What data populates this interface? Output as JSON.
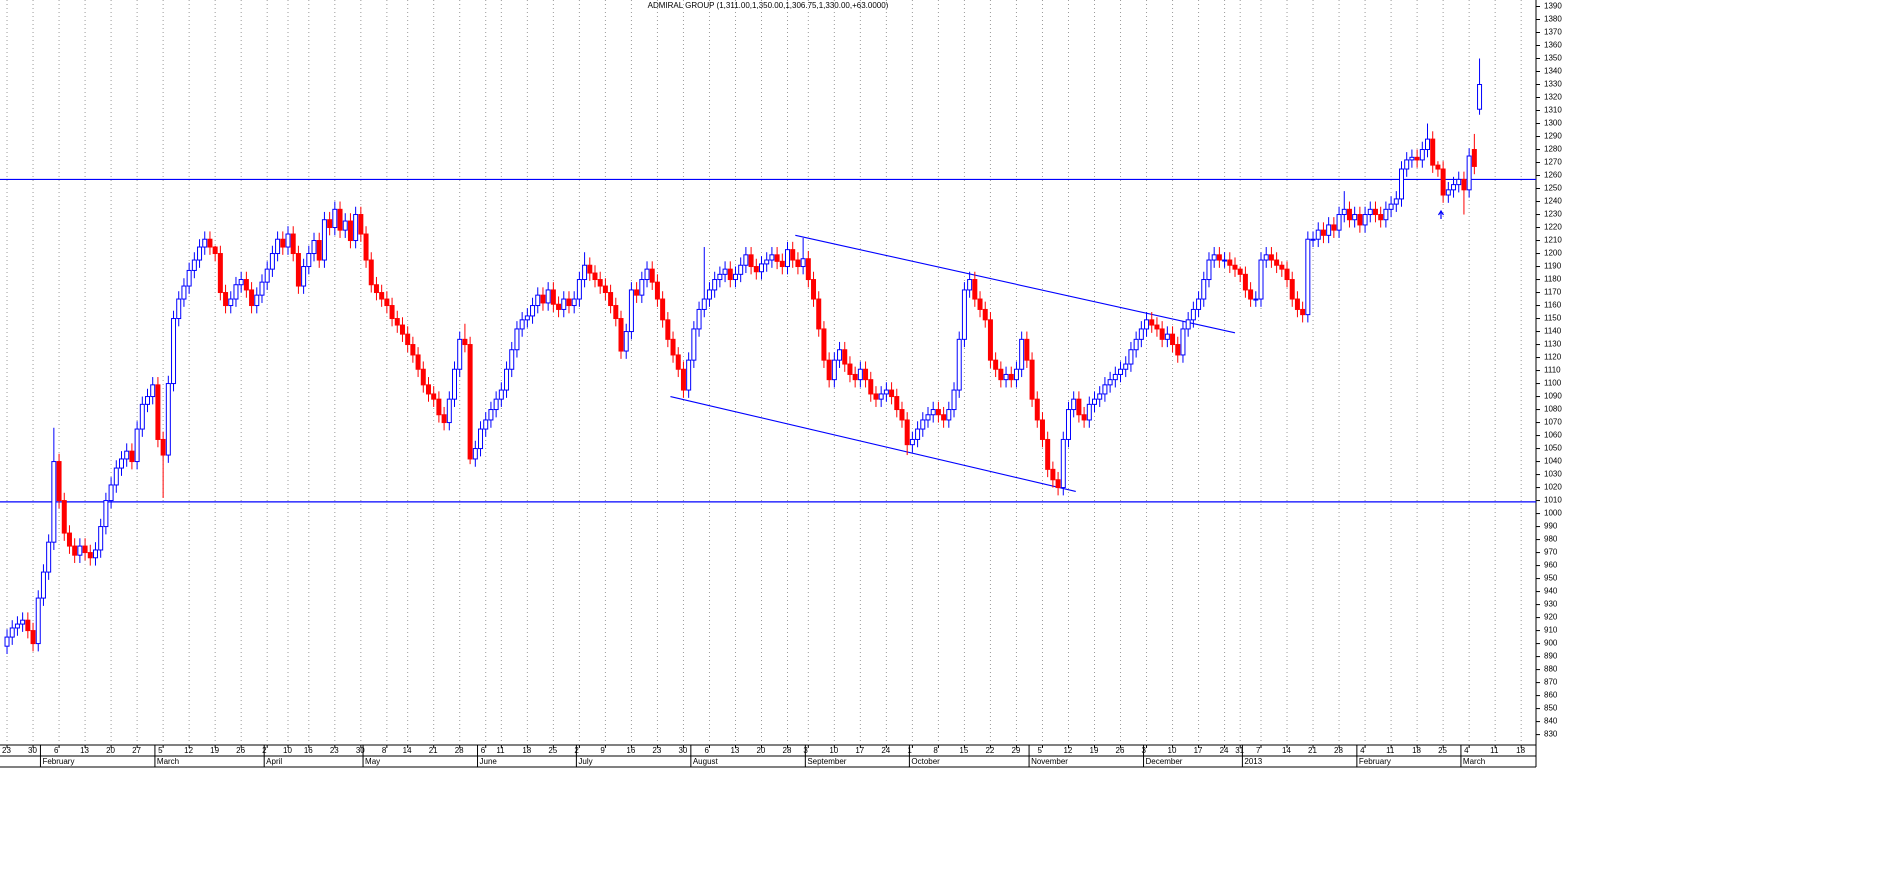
{
  "chart_data": {
    "type": "candlestick",
    "title": "ADMIRAL GROUP (1,311.00,1,350.00,1,306.75,1,330.00,+63.0000)",
    "up_color": "#0000ff",
    "down_color": "#ff0000",
    "line_color": "#0000ff",
    "grid": true,
    "xlim": [
      -1.35,
      293.85
    ],
    "ylim": [
      822,
      1395
    ],
    "yticks": [
      830,
      840,
      850,
      860,
      870,
      880,
      890,
      900,
      910,
      920,
      930,
      940,
      950,
      960,
      970,
      980,
      990,
      1000,
      1010,
      1020,
      1030,
      1040,
      1050,
      1060,
      1070,
      1080,
      1090,
      1100,
      1110,
      1120,
      1130,
      1140,
      1150,
      1160,
      1170,
      1180,
      1190,
      1200,
      1210,
      1220,
      1230,
      1240,
      1250,
      1260,
      1270,
      1280,
      1290,
      1300,
      1310,
      1320,
      1330,
      1340,
      1350,
      1360,
      1370,
      1380,
      1390
    ],
    "xticks": [
      {
        "value": 0,
        "label": "23"
      },
      {
        "value": 5,
        "label": "30"
      },
      {
        "value": 10,
        "label": "6"
      },
      {
        "value": 15,
        "label": "13"
      },
      {
        "value": 20,
        "label": "20"
      },
      {
        "value": 25,
        "label": "27"
      },
      {
        "value": 30,
        "label": "5"
      },
      {
        "value": 35,
        "label": "12"
      },
      {
        "value": 40,
        "label": "19"
      },
      {
        "value": 45,
        "label": "26"
      },
      {
        "value": 50,
        "label": "2"
      },
      {
        "value": 54,
        "label": "10"
      },
      {
        "value": 58,
        "label": "16"
      },
      {
        "value": 63,
        "label": "23"
      },
      {
        "value": 68,
        "label": "30"
      },
      {
        "value": 73,
        "label": "8"
      },
      {
        "value": 77,
        "label": "14"
      },
      {
        "value": 82,
        "label": "21"
      },
      {
        "value": 87,
        "label": "28"
      },
      {
        "value": 92,
        "label": "6"
      },
      {
        "value": 95,
        "label": "11"
      },
      {
        "value": 100,
        "label": "18"
      },
      {
        "value": 105,
        "label": "25"
      },
      {
        "value": 110,
        "label": "2"
      },
      {
        "value": 115,
        "label": "9"
      },
      {
        "value": 120,
        "label": "16"
      },
      {
        "value": 125,
        "label": "23"
      },
      {
        "value": 130,
        "label": "30"
      },
      {
        "value": 135,
        "label": "6"
      },
      {
        "value": 140,
        "label": "13"
      },
      {
        "value": 145,
        "label": "20"
      },
      {
        "value": 150,
        "label": "28"
      },
      {
        "value": 154,
        "label": "3"
      },
      {
        "value": 159,
        "label": "10"
      },
      {
        "value": 164,
        "label": "17"
      },
      {
        "value": 169,
        "label": "24"
      },
      {
        "value": 174,
        "label": "1"
      },
      {
        "value": 179,
        "label": "8"
      },
      {
        "value": 184,
        "label": "15"
      },
      {
        "value": 189,
        "label": "22"
      },
      {
        "value": 194,
        "label": "29"
      },
      {
        "value": 199,
        "label": "5"
      },
      {
        "value": 204,
        "label": "12"
      },
      {
        "value": 209,
        "label": "19"
      },
      {
        "value": 214,
        "label": "26"
      },
      {
        "value": 219,
        "label": "3"
      },
      {
        "value": 224,
        "label": "10"
      },
      {
        "value": 229,
        "label": "17"
      },
      {
        "value": 234,
        "label": "24"
      },
      {
        "value": 237,
        "label": "31"
      },
      {
        "value": 241,
        "label": "7"
      },
      {
        "value": 246,
        "label": "14"
      },
      {
        "value": 251,
        "label": "21"
      },
      {
        "value": 256,
        "label": "28"
      },
      {
        "value": 261,
        "label": "4"
      },
      {
        "value": 266,
        "label": "11"
      },
      {
        "value": 271,
        "label": "18"
      },
      {
        "value": 276,
        "label": "25"
      },
      {
        "value": 281,
        "label": "4"
      },
      {
        "value": 286,
        "label": "11"
      },
      {
        "value": 291,
        "label": "18"
      }
    ],
    "months": [
      {
        "value": 7,
        "label": "February"
      },
      {
        "value": 29,
        "label": "March"
      },
      {
        "value": 50,
        "label": "April"
      },
      {
        "value": 69,
        "label": "May"
      },
      {
        "value": 91,
        "label": "June"
      },
      {
        "value": 110,
        "label": "July"
      },
      {
        "value": 132,
        "label": "August"
      },
      {
        "value": 154,
        "label": "September"
      },
      {
        "value": 174,
        "label": "October"
      },
      {
        "value": 197,
        "label": "November"
      },
      {
        "value": 219,
        "label": "December"
      },
      {
        "value": 238,
        "label": "2013"
      },
      {
        "value": 260,
        "label": "February"
      },
      {
        "value": 280,
        "label": "March"
      }
    ],
    "hlines": [
      1257,
      1009
    ],
    "trendlines": [
      {
        "x": [
          151.5,
          236
        ],
        "y": [
          1214,
          1139
        ]
      },
      {
        "x": [
          127.5,
          205.4
        ],
        "y": [
          1090,
          1017
        ]
      }
    ],
    "open": [
      898,
      905,
      912,
      915,
      918,
      910,
      900,
      935,
      955,
      978,
      1040,
      1010,
      985,
      975,
      968,
      975,
      970,
      966,
      972,
      990,
      1010,
      1022,
      1035,
      1042,
      1048,
      1040,
      1065,
      1084,
      1090,
      1099,
      1057,
      1045,
      1100,
      1150,
      1165,
      1175,
      1187,
      1195,
      1205,
      1211,
      1205,
      1200,
      1170,
      1160,
      1165,
      1176,
      1180,
      1172,
      1160,
      1168,
      1178,
      1188,
      1200,
      1211,
      1205,
      1215,
      1200,
      1175,
      1190,
      1200,
      1210,
      1195,
      1226,
      1220,
      1234,
      1218,
      1225,
      1210,
      1230,
      1215,
      1195,
      1176,
      1170,
      1165,
      1160,
      1150,
      1145,
      1138,
      1130,
      1122,
      1111,
      1099,
      1092,
      1088,
      1076,
      1070,
      1088,
      1111,
      1134,
      1130,
      1042,
      1050,
      1065,
      1072,
      1080,
      1088,
      1095,
      1111,
      1126,
      1142,
      1149,
      1152,
      1160,
      1168,
      1162,
      1172,
      1161,
      1157,
      1165,
      1160,
      1165,
      1180,
      1191,
      1185,
      1180,
      1175,
      1170,
      1160,
      1150,
      1125,
      1140,
      1172,
      1168,
      1180,
      1188,
      1178,
      1165,
      1149,
      1134,
      1122,
      1111,
      1095,
      1118,
      1142,
      1157,
      1165,
      1172,
      1180,
      1184,
      1188,
      1180,
      1184,
      1191,
      1199,
      1190,
      1186,
      1192,
      1195,
      1199,
      1194,
      1190,
      1203,
      1195,
      1190,
      1196,
      1180,
      1165,
      1142,
      1118,
      1103,
      1118,
      1126,
      1115,
      1107,
      1103,
      1111,
      1103,
      1092,
      1088,
      1092,
      1095,
      1090,
      1080,
      1072,
      1053,
      1057,
      1065,
      1072,
      1076,
      1080,
      1076,
      1072,
      1080,
      1095,
      1134,
      1172,
      1180,
      1165,
      1157,
      1149,
      1118,
      1111,
      1103,
      1107,
      1103,
      1111,
      1134,
      1118,
      1088,
      1072,
      1057,
      1034,
      1026,
      1020,
      1057,
      1080,
      1088,
      1076,
      1072,
      1084,
      1088,
      1092,
      1099,
      1103,
      1107,
      1111,
      1115,
      1126,
      1134,
      1142,
      1149,
      1145,
      1142,
      1134,
      1138,
      1130,
      1122,
      1142,
      1149,
      1157,
      1165,
      1180,
      1195,
      1199,
      1195,
      1195,
      1191,
      1188,
      1184,
      1172,
      1165,
      1165,
      1195,
      1199,
      1195,
      1191,
      1188,
      1180,
      1165,
      1157,
      1153,
      1211,
      1211,
      1218,
      1214,
      1222,
      1218,
      1230,
      1234,
      1226,
      1230,
      1222,
      1230,
      1234,
      1230,
      1226,
      1234,
      1238,
      1242,
      1265,
      1272,
      1274,
      1272,
      1280,
      1288,
      1268,
      1265,
      1245,
      1249,
      1253,
      1257,
      1249,
      1280,
      1311
    ],
    "high": [
      911,
      918,
      921,
      924,
      924,
      916,
      941,
      961,
      984,
      1066,
      1046,
      1016,
      991,
      981,
      981,
      981,
      976,
      978,
      996,
      1016,
      1028,
      1041,
      1048,
      1054,
      1054,
      1071,
      1090,
      1096,
      1105,
      1105,
      1063,
      1106,
      1156,
      1171,
      1181,
      1193,
      1201,
      1211,
      1217,
      1217,
      1206,
      1206,
      1176,
      1171,
      1182,
      1186,
      1186,
      1178,
      1174,
      1184,
      1194,
      1206,
      1217,
      1217,
      1221,
      1221,
      1206,
      1196,
      1206,
      1216,
      1216,
      1232,
      1232,
      1240,
      1240,
      1231,
      1231,
      1236,
      1236,
      1221,
      1201,
      1182,
      1176,
      1171,
      1166,
      1156,
      1151,
      1144,
      1136,
      1128,
      1117,
      1105,
      1098,
      1094,
      1082,
      1094,
      1117,
      1140,
      1146,
      1136,
      1056,
      1071,
      1078,
      1086,
      1094,
      1101,
      1117,
      1132,
      1148,
      1155,
      1158,
      1166,
      1174,
      1174,
      1178,
      1178,
      1167,
      1171,
      1171,
      1171,
      1186,
      1201,
      1197,
      1191,
      1186,
      1181,
      1176,
      1166,
      1156,
      1146,
      1178,
      1178,
      1186,
      1194,
      1194,
      1184,
      1171,
      1155,
      1140,
      1128,
      1117,
      1124,
      1148,
      1163,
      1205,
      1178,
      1186,
      1190,
      1194,
      1194,
      1190,
      1197,
      1205,
      1205,
      1196,
      1198,
      1201,
      1205,
      1205,
      1200,
      1209,
      1209,
      1201,
      1212,
      1202,
      1186,
      1171,
      1148,
      1124,
      1124,
      1132,
      1132,
      1121,
      1113,
      1117,
      1117,
      1109,
      1098,
      1098,
      1101,
      1101,
      1096,
      1086,
      1078,
      1063,
      1071,
      1078,
      1082,
      1086,
      1086,
      1082,
      1086,
      1101,
      1140,
      1178,
      1186,
      1186,
      1171,
      1163,
      1155,
      1124,
      1117,
      1113,
      1113,
      1117,
      1140,
      1140,
      1124,
      1094,
      1078,
      1063,
      1040,
      1032,
      1063,
      1086,
      1094,
      1094,
      1082,
      1090,
      1094,
      1098,
      1105,
      1109,
      1113,
      1117,
      1121,
      1132,
      1140,
      1148,
      1155,
      1155,
      1151,
      1148,
      1144,
      1144,
      1136,
      1148,
      1155,
      1163,
      1171,
      1186,
      1201,
      1205,
      1205,
      1201,
      1201,
      1197,
      1190,
      1190,
      1178,
      1171,
      1201,
      1205,
      1205,
      1201,
      1194,
      1194,
      1186,
      1171,
      1163,
      1217,
      1217,
      1224,
      1224,
      1228,
      1228,
      1236,
      1248,
      1240,
      1236,
      1236,
      1236,
      1240,
      1240,
      1236,
      1240,
      1244,
      1248,
      1271,
      1278,
      1280,
      1280,
      1286,
      1300,
      1294,
      1271,
      1271,
      1255,
      1259,
      1263,
      1263,
      1281,
      1292,
      1350
    ],
    "low": [
      892,
      899,
      906,
      909,
      904,
      894,
      894,
      929,
      949,
      972,
      1004,
      979,
      969,
      962,
      962,
      964,
      960,
      960,
      966,
      984,
      1004,
      1016,
      1029,
      1036,
      1034,
      1034,
      1059,
      1078,
      1084,
      1051,
      1012,
      1039,
      1094,
      1144,
      1159,
      1169,
      1181,
      1189,
      1199,
      1199,
      1194,
      1164,
      1154,
      1154,
      1159,
      1170,
      1166,
      1154,
      1154,
      1162,
      1172,
      1182,
      1194,
      1199,
      1199,
      1194,
      1169,
      1169,
      1184,
      1194,
      1189,
      1189,
      1214,
      1214,
      1212,
      1212,
      1204,
      1204,
      1209,
      1189,
      1170,
      1164,
      1159,
      1154,
      1144,
      1139,
      1132,
      1124,
      1116,
      1105,
      1093,
      1086,
      1082,
      1070,
      1064,
      1064,
      1082,
      1105,
      1124,
      1038,
      1036,
      1044,
      1059,
      1066,
      1074,
      1082,
      1089,
      1105,
      1120,
      1136,
      1143,
      1146,
      1154,
      1156,
      1156,
      1155,
      1151,
      1151,
      1154,
      1154,
      1159,
      1174,
      1179,
      1174,
      1169,
      1164,
      1154,
      1144,
      1119,
      1119,
      1134,
      1162,
      1162,
      1174,
      1172,
      1159,
      1143,
      1128,
      1116,
      1105,
      1089,
      1089,
      1112,
      1136,
      1151,
      1159,
      1166,
      1174,
      1178,
      1174,
      1174,
      1178,
      1185,
      1184,
      1180,
      1180,
      1186,
      1189,
      1188,
      1184,
      1184,
      1189,
      1184,
      1184,
      1174,
      1159,
      1136,
      1112,
      1097,
      1097,
      1112,
      1109,
      1101,
      1097,
      1097,
      1097,
      1086,
      1082,
      1082,
      1086,
      1084,
      1074,
      1066,
      1045,
      1047,
      1051,
      1059,
      1066,
      1070,
      1070,
      1066,
      1066,
      1074,
      1089,
      1128,
      1166,
      1159,
      1151,
      1143,
      1112,
      1105,
      1097,
      1097,
      1097,
      1097,
      1105,
      1112,
      1082,
      1066,
      1051,
      1028,
      1020,
      1014,
      1014,
      1051,
      1074,
      1070,
      1066,
      1066,
      1078,
      1082,
      1086,
      1093,
      1097,
      1101,
      1105,
      1109,
      1120,
      1128,
      1136,
      1139,
      1136,
      1128,
      1128,
      1124,
      1116,
      1116,
      1136,
      1143,
      1151,
      1159,
      1174,
      1189,
      1189,
      1189,
      1185,
      1182,
      1178,
      1166,
      1159,
      1159,
      1159,
      1189,
      1189,
      1185,
      1182,
      1174,
      1159,
      1151,
      1147,
      1147,
      1205,
      1205,
      1208,
      1208,
      1212,
      1212,
      1224,
      1220,
      1220,
      1216,
      1216,
      1224,
      1224,
      1220,
      1220,
      1228,
      1232,
      1236,
      1259,
      1266,
      1266,
      1266,
      1274,
      1262,
      1259,
      1239,
      1239,
      1243,
      1247,
      1230,
      1243,
      1261,
      1306.75
    ],
    "close": [
      905,
      912,
      915,
      918,
      910,
      900,
      935,
      955,
      978,
      1040,
      1010,
      985,
      975,
      968,
      975,
      970,
      966,
      972,
      990,
      1010,
      1022,
      1035,
      1042,
      1048,
      1040,
      1065,
      1084,
      1090,
      1099,
      1057,
      1045,
      1100,
      1150,
      1165,
      1175,
      1187,
      1195,
      1205,
      1211,
      1205,
      1200,
      1170,
      1160,
      1165,
      1176,
      1180,
      1172,
      1160,
      1168,
      1178,
      1188,
      1200,
      1211,
      1205,
      1215,
      1200,
      1175,
      1190,
      1200,
      1210,
      1195,
      1226,
      1220,
      1234,
      1218,
      1225,
      1210,
      1230,
      1215,
      1195,
      1176,
      1170,
      1165,
      1160,
      1150,
      1145,
      1138,
      1130,
      1122,
      1111,
      1099,
      1092,
      1088,
      1076,
      1070,
      1088,
      1111,
      1134,
      1130,
      1042,
      1050,
      1065,
      1072,
      1080,
      1088,
      1095,
      1111,
      1126,
      1142,
      1149,
      1152,
      1160,
      1168,
      1162,
      1172,
      1161,
      1157,
      1165,
      1160,
      1165,
      1180,
      1191,
      1185,
      1180,
      1175,
      1170,
      1160,
      1150,
      1125,
      1140,
      1172,
      1168,
      1180,
      1188,
      1178,
      1165,
      1149,
      1134,
      1122,
      1111,
      1095,
      1118,
      1142,
      1157,
      1165,
      1172,
      1180,
      1184,
      1188,
      1180,
      1184,
      1191,
      1199,
      1190,
      1186,
      1192,
      1195,
      1199,
      1194,
      1190,
      1203,
      1195,
      1190,
      1196,
      1180,
      1165,
      1142,
      1118,
      1103,
      1118,
      1126,
      1115,
      1107,
      1103,
      1111,
      1103,
      1092,
      1088,
      1092,
      1095,
      1090,
      1080,
      1072,
      1053,
      1057,
      1065,
      1072,
      1076,
      1080,
      1076,
      1072,
      1080,
      1095,
      1134,
      1172,
      1180,
      1165,
      1157,
      1149,
      1118,
      1111,
      1103,
      1107,
      1103,
      1111,
      1134,
      1118,
      1088,
      1072,
      1057,
      1034,
      1026,
      1020,
      1057,
      1080,
      1088,
      1076,
      1072,
      1084,
      1088,
      1092,
      1099,
      1103,
      1107,
      1111,
      1115,
      1126,
      1134,
      1142,
      1149,
      1145,
      1142,
      1134,
      1138,
      1130,
      1122,
      1142,
      1149,
      1157,
      1165,
      1180,
      1195,
      1199,
      1195,
      1195,
      1191,
      1188,
      1184,
      1172,
      1165,
      1165,
      1195,
      1199,
      1195,
      1191,
      1188,
      1180,
      1165,
      1157,
      1153,
      1211,
      1211,
      1218,
      1214,
      1222,
      1218,
      1230,
      1234,
      1226,
      1230,
      1222,
      1230,
      1234,
      1230,
      1226,
      1234,
      1238,
      1242,
      1265,
      1272,
      1274,
      1272,
      1280,
      1288,
      1268,
      1265,
      1245,
      1249,
      1253,
      1257,
      1249,
      1275,
      1267,
      1330
    ]
  }
}
